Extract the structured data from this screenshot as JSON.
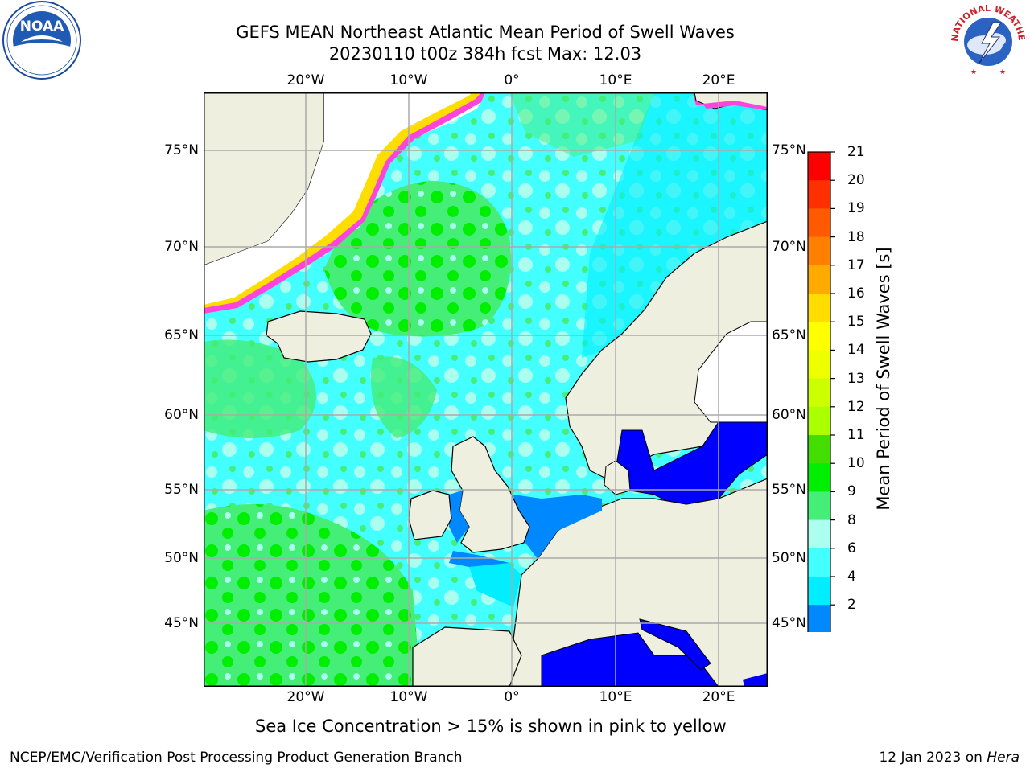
{
  "title": {
    "line1": "GEFS MEAN Northeast Atlantic Mean Period of Swell Waves",
    "line2": "20230110 t00z 384h fcst   Max: 12.03"
  },
  "map": {
    "lon_labels": [
      "20°W",
      "10°W",
      "0°",
      "10°E",
      "20°E"
    ],
    "lat_labels": [
      "75°N",
      "70°N",
      "65°N",
      "60°N",
      "55°N",
      "50°N",
      "45°N"
    ]
  },
  "colorbar": {
    "label": "Mean Period of Swell Waves [s]",
    "ticks": [
      "21",
      "20",
      "19",
      "18",
      "17",
      "16",
      "15",
      "14",
      "13",
      "12",
      "11",
      "10",
      "9",
      "8",
      "6",
      "4",
      "2"
    ],
    "colors": [
      "#ff0000",
      "#ff3000",
      "#ff5a00",
      "#ff8000",
      "#ffaa00",
      "#ffdd00",
      "#ffff00",
      "#eeff00",
      "#ccff00",
      "#aaff00",
      "#44dd00",
      "#00ee00",
      "#44ee77",
      "#aaffee",
      "#44ffff",
      "#00eeff",
      "#0088ff",
      "#0000ff"
    ]
  },
  "caption": "Sea Ice Concentration > 15% is shown in pink to yellow",
  "footer": {
    "left": "NCEP/EMC/Verification Post Processing Product Generation Branch",
    "right_prefix": "12 Jan 2023 on ",
    "right_host": "Hera"
  },
  "logos": {
    "left": "noaa-logo",
    "left_text": "NOAA",
    "right": "nws-logo",
    "right_text": "NATIONAL WEATHER SERVICE"
  }
}
